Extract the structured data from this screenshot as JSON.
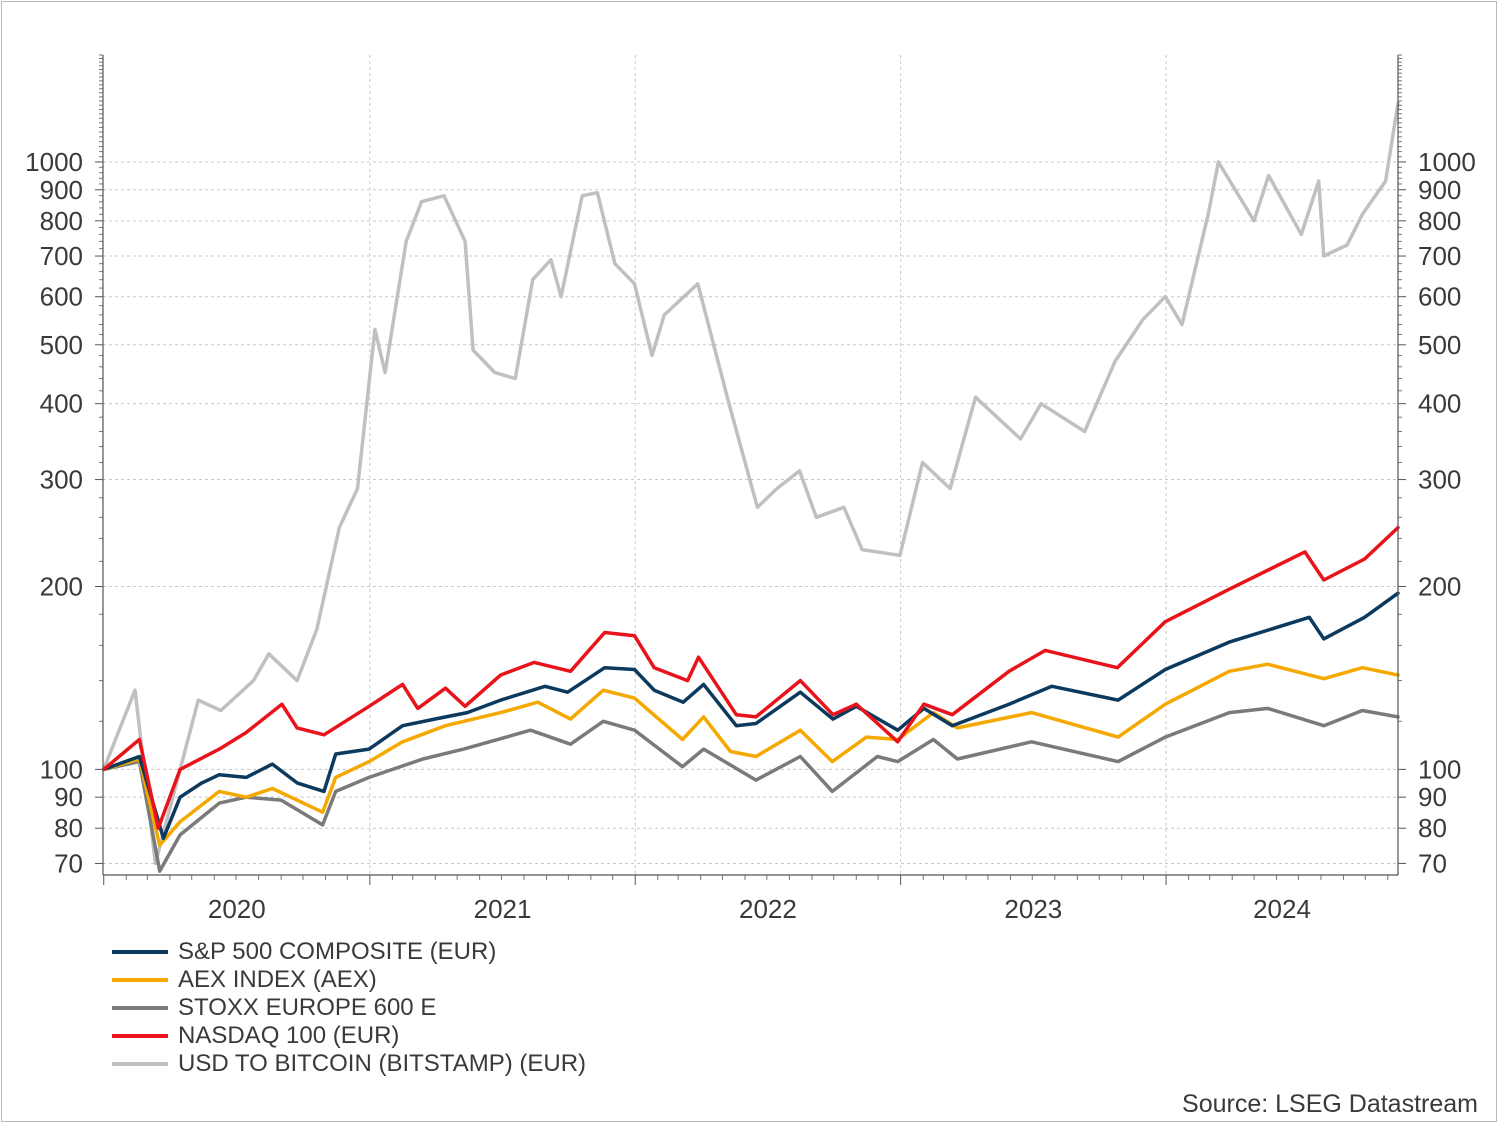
{
  "source": "Source: LSEG Datastream",
  "chart_data": {
    "type": "line",
    "title": "",
    "xlabel": "",
    "ylabel": "",
    "yscale": "log",
    "ylim": [
      67,
      1500
    ],
    "xlim": [
      "2019-12-31",
      "2024-11-15"
    ],
    "yticks": [
      70,
      80,
      90,
      100,
      200,
      300,
      400,
      500,
      600,
      700,
      800,
      900,
      1000
    ],
    "ytick_labels": [
      "70",
      "80",
      "90",
      "100",
      "200",
      "300",
      "400",
      "500",
      "600",
      "700",
      "800",
      "900",
      "1000"
    ],
    "xticks": [
      "2020",
      "2021",
      "2022",
      "2023",
      "2024"
    ],
    "grid": true,
    "legend_position": "bottom-left",
    "series": [
      {
        "name": "S&P 500 COMPOSITE (EUR)",
        "color": "#0b3a5e",
        "points": [
          [
            "2020-01-01",
            100
          ],
          [
            "2020-02-19",
            105
          ],
          [
            "2020-03-23",
            77
          ],
          [
            "2020-04-15",
            90
          ],
          [
            "2020-05-15",
            95
          ],
          [
            "2020-06-08",
            98
          ],
          [
            "2020-07-15",
            97
          ],
          [
            "2020-08-20",
            102
          ],
          [
            "2020-09-23",
            95
          ],
          [
            "2020-10-30",
            92
          ],
          [
            "2020-11-15",
            106
          ],
          [
            "2020-12-31",
            108
          ],
          [
            "2021-02-15",
            118
          ],
          [
            "2021-03-31",
            121
          ],
          [
            "2021-05-15",
            124
          ],
          [
            "2021-06-30",
            130
          ],
          [
            "2021-08-30",
            137
          ],
          [
            "2021-09-30",
            134
          ],
          [
            "2021-11-20",
            147
          ],
          [
            "2021-12-31",
            146
          ],
          [
            "2022-01-27",
            135
          ],
          [
            "2022-03-08",
            129
          ],
          [
            "2022-04-05",
            138
          ],
          [
            "2022-05-20",
            118
          ],
          [
            "2022-06-16",
            119
          ],
          [
            "2022-08-16",
            134
          ],
          [
            "2022-09-30",
            121
          ],
          [
            "2022-11-01",
            127
          ],
          [
            "2022-12-28",
            116
          ],
          [
            "2023-02-02",
            126
          ],
          [
            "2023-03-13",
            118
          ],
          [
            "2023-05-30",
            128
          ],
          [
            "2023-07-28",
            137
          ],
          [
            "2023-10-27",
            130
          ],
          [
            "2023-12-31",
            146
          ],
          [
            "2024-03-28",
            162
          ],
          [
            "2024-07-16",
            178
          ],
          [
            "2024-08-05",
            164
          ],
          [
            "2024-09-30",
            178
          ],
          [
            "2024-11-15",
            195
          ]
        ]
      },
      {
        "name": "AEX INDEX (AEX)",
        "color": "#f5a800",
        "points": [
          [
            "2020-01-01",
            100
          ],
          [
            "2020-02-19",
            104
          ],
          [
            "2020-03-18",
            75
          ],
          [
            "2020-04-15",
            82
          ],
          [
            "2020-06-08",
            92
          ],
          [
            "2020-07-15",
            90
          ],
          [
            "2020-08-20",
            93
          ],
          [
            "2020-10-28",
            85
          ],
          [
            "2020-11-15",
            97
          ],
          [
            "2020-12-31",
            103
          ],
          [
            "2021-02-15",
            111
          ],
          [
            "2021-04-15",
            118
          ],
          [
            "2021-06-30",
            124
          ],
          [
            "2021-08-20",
            129
          ],
          [
            "2021-10-04",
            121
          ],
          [
            "2021-11-18",
            135
          ],
          [
            "2021-12-31",
            131
          ],
          [
            "2022-03-07",
            112
          ],
          [
            "2022-04-05",
            122
          ],
          [
            "2022-05-12",
            107
          ],
          [
            "2022-06-16",
            105
          ],
          [
            "2022-08-16",
            116
          ],
          [
            "2022-09-29",
            103
          ],
          [
            "2022-11-15",
            113
          ],
          [
            "2022-12-28",
            112
          ],
          [
            "2023-02-15",
            124
          ],
          [
            "2023-03-20",
            117
          ],
          [
            "2023-06-30",
            124
          ],
          [
            "2023-10-27",
            113
          ],
          [
            "2023-12-31",
            128
          ],
          [
            "2024-03-28",
            145
          ],
          [
            "2024-05-20",
            149
          ],
          [
            "2024-08-05",
            141
          ],
          [
            "2024-09-27",
            147
          ],
          [
            "2024-11-15",
            143
          ]
        ]
      },
      {
        "name": "STOXX EUROPE 600 E",
        "color": "#7a7a7a",
        "points": [
          [
            "2020-01-01",
            100
          ],
          [
            "2020-02-19",
            103
          ],
          [
            "2020-03-18",
            68
          ],
          [
            "2020-04-15",
            78
          ],
          [
            "2020-06-08",
            88
          ],
          [
            "2020-07-15",
            90
          ],
          [
            "2020-09-01",
            89
          ],
          [
            "2020-10-28",
            81
          ],
          [
            "2020-11-15",
            92
          ],
          [
            "2020-12-31",
            97
          ],
          [
            "2021-03-15",
            104
          ],
          [
            "2021-05-10",
            108
          ],
          [
            "2021-08-10",
            116
          ],
          [
            "2021-10-04",
            110
          ],
          [
            "2021-11-18",
            120
          ],
          [
            "2021-12-31",
            116
          ],
          [
            "2022-03-07",
            101
          ],
          [
            "2022-04-05",
            108
          ],
          [
            "2022-06-16",
            96
          ],
          [
            "2022-08-16",
            105
          ],
          [
            "2022-09-29",
            92
          ],
          [
            "2022-11-30",
            105
          ],
          [
            "2022-12-28",
            103
          ],
          [
            "2023-02-15",
            112
          ],
          [
            "2023-03-20",
            104
          ],
          [
            "2023-06-30",
            111
          ],
          [
            "2023-10-27",
            103
          ],
          [
            "2023-12-31",
            113
          ],
          [
            "2024-03-28",
            124
          ],
          [
            "2024-05-20",
            126
          ],
          [
            "2024-08-05",
            118
          ],
          [
            "2024-09-27",
            125
          ],
          [
            "2024-11-15",
            122
          ]
        ]
      },
      {
        "name": "NASDAQ 100 (EUR)",
        "color": "#e8131b",
        "points": [
          [
            "2020-01-01",
            100
          ],
          [
            "2020-02-19",
            112
          ],
          [
            "2020-03-16",
            80
          ],
          [
            "2020-04-15",
            100
          ],
          [
            "2020-06-08",
            108
          ],
          [
            "2020-07-15",
            115
          ],
          [
            "2020-09-02",
            128
          ],
          [
            "2020-09-23",
            117
          ],
          [
            "2020-10-30",
            114
          ],
          [
            "2020-12-31",
            127
          ],
          [
            "2021-02-15",
            138
          ],
          [
            "2021-03-08",
            126
          ],
          [
            "2021-04-15",
            136
          ],
          [
            "2021-05-12",
            127
          ],
          [
            "2021-06-30",
            143
          ],
          [
            "2021-08-15",
            150
          ],
          [
            "2021-10-04",
            145
          ],
          [
            "2021-11-20",
            168
          ],
          [
            "2021-12-31",
            166
          ],
          [
            "2022-01-27",
            147
          ],
          [
            "2022-03-14",
            140
          ],
          [
            "2022-03-29",
            153
          ],
          [
            "2022-05-20",
            123
          ],
          [
            "2022-06-16",
            122
          ],
          [
            "2022-08-16",
            140
          ],
          [
            "2022-09-30",
            123
          ],
          [
            "2022-11-01",
            128
          ],
          [
            "2022-12-28",
            111
          ],
          [
            "2023-02-02",
            128
          ],
          [
            "2023-03-13",
            123
          ],
          [
            "2023-05-30",
            145
          ],
          [
            "2023-07-19",
            157
          ],
          [
            "2023-10-26",
            147
          ],
          [
            "2023-12-31",
            175
          ],
          [
            "2024-03-28",
            198
          ],
          [
            "2024-07-10",
            228
          ],
          [
            "2024-08-05",
            205
          ],
          [
            "2024-09-30",
            222
          ],
          [
            "2024-11-15",
            250
          ]
        ]
      },
      {
        "name": "USD TO BITCOIN (BITSTAMP) (EUR)",
        "color": "#c0c0c0",
        "points": [
          [
            "2020-01-01",
            100
          ],
          [
            "2020-02-13",
            135
          ],
          [
            "2020-03-12",
            70
          ],
          [
            "2020-04-15",
            100
          ],
          [
            "2020-05-10",
            130
          ],
          [
            "2020-06-10",
            125
          ],
          [
            "2020-07-25",
            140
          ],
          [
            "2020-08-15",
            155
          ],
          [
            "2020-09-23",
            140
          ],
          [
            "2020-10-20",
            170
          ],
          [
            "2020-11-20",
            250
          ],
          [
            "2020-12-15",
            290
          ],
          [
            "2021-01-08",
            530
          ],
          [
            "2021-01-22",
            450
          ],
          [
            "2021-02-20",
            740
          ],
          [
            "2021-03-13",
            860
          ],
          [
            "2021-04-13",
            880
          ],
          [
            "2021-05-12",
            740
          ],
          [
            "2021-05-23",
            490
          ],
          [
            "2021-06-22",
            450
          ],
          [
            "2021-07-20",
            440
          ],
          [
            "2021-08-13",
            640
          ],
          [
            "2021-09-07",
            690
          ],
          [
            "2021-09-21",
            600
          ],
          [
            "2021-10-20",
            880
          ],
          [
            "2021-11-10",
            890
          ],
          [
            "2021-12-04",
            680
          ],
          [
            "2021-12-31",
            630
          ],
          [
            "2022-01-24",
            480
          ],
          [
            "2022-02-10",
            560
          ],
          [
            "2022-03-28",
            630
          ],
          [
            "2022-05-10",
            400
          ],
          [
            "2022-06-18",
            270
          ],
          [
            "2022-07-15",
            290
          ],
          [
            "2022-08-15",
            310
          ],
          [
            "2022-09-07",
            260
          ],
          [
            "2022-10-15",
            270
          ],
          [
            "2022-11-09",
            230
          ],
          [
            "2022-12-31",
            225
          ],
          [
            "2023-01-31",
            320
          ],
          [
            "2023-03-10",
            290
          ],
          [
            "2023-04-14",
            410
          ],
          [
            "2023-06-15",
            350
          ],
          [
            "2023-07-13",
            400
          ],
          [
            "2023-09-11",
            360
          ],
          [
            "2023-10-23",
            470
          ],
          [
            "2023-11-30",
            550
          ],
          [
            "2023-12-31",
            600
          ],
          [
            "2024-01-23",
            540
          ],
          [
            "2024-02-28",
            820
          ],
          [
            "2024-03-13",
            1000
          ],
          [
            "2024-05-01",
            800
          ],
          [
            "2024-05-21",
            950
          ],
          [
            "2024-07-05",
            760
          ],
          [
            "2024-07-29,",
            930
          ],
          [
            "2024-08-05",
            700
          ],
          [
            "2024-09-06",
            730
          ],
          [
            "2024-09-27",
            820
          ],
          [
            "2024-10-29",
            930
          ],
          [
            "2024-11-15",
            1250
          ]
        ]
      }
    ]
  }
}
